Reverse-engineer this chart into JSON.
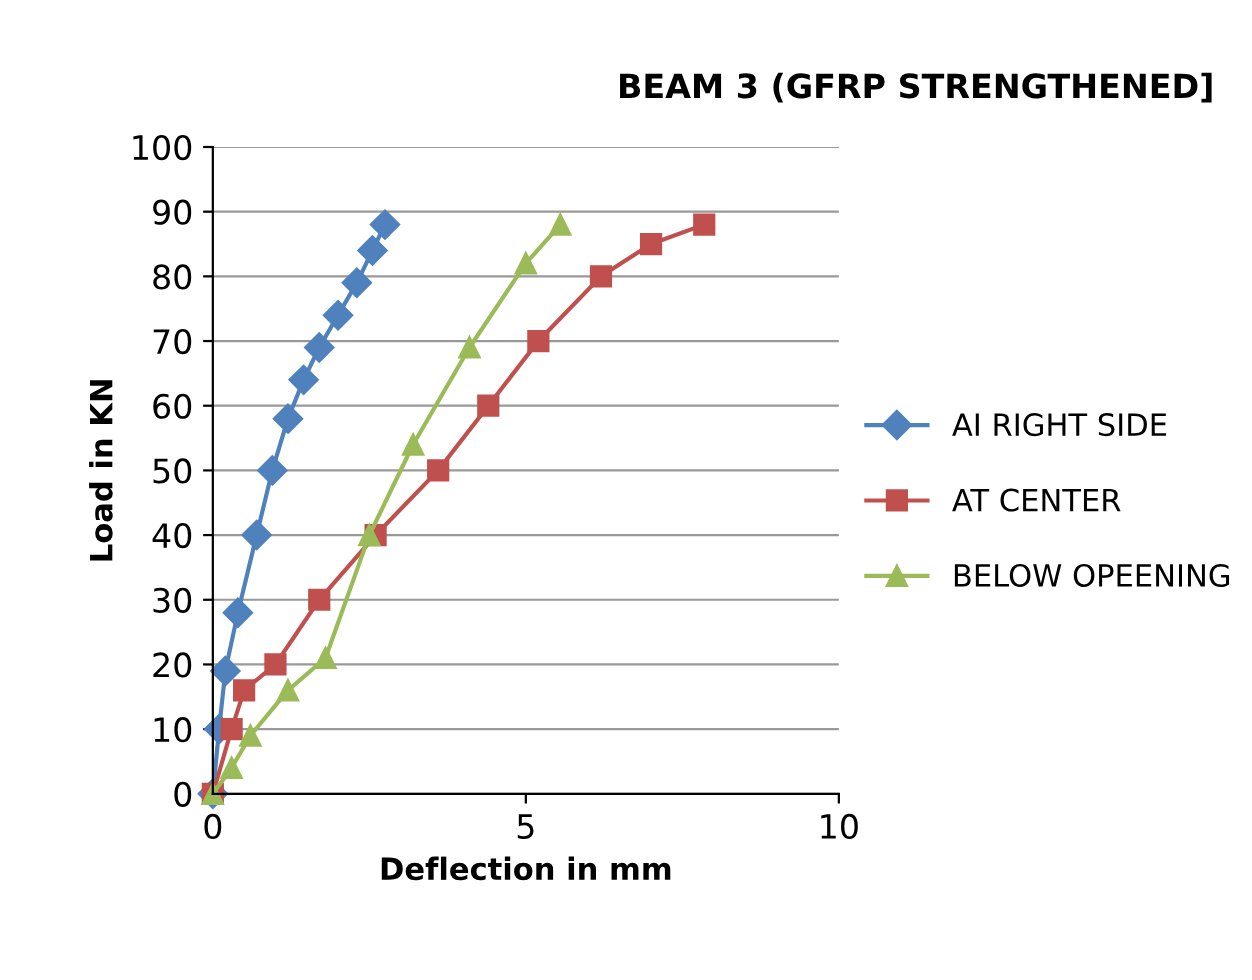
{
  "chart_data": {
    "type": "line",
    "title": "BEAM 3 (GFRP STRENGTHENED]",
    "xlabel": "Deflection in mm",
    "ylabel": "Load in KN",
    "xlim": [
      0,
      10
    ],
    "xticks": [
      0,
      5,
      10
    ],
    "ylim": [
      0,
      100
    ],
    "yticks": [
      0,
      10,
      20,
      30,
      40,
      50,
      60,
      70,
      80,
      90,
      100
    ],
    "grid": "y",
    "legend": "right",
    "line_style": "solid",
    "series": [
      {
        "name": "AI RIGHT SIDE",
        "color": "#4f81bd",
        "marker": "diamond",
        "x": [
          0,
          0.1,
          0.2,
          0.4,
          0.7,
          0.95,
          1.2,
          1.45,
          1.7,
          2.0,
          2.3,
          2.55,
          2.75
        ],
        "values": [
          0,
          10,
          19,
          28,
          40,
          50,
          58,
          64,
          69,
          74,
          79,
          84,
          88
        ]
      },
      {
        "name": "AT CENTER",
        "color": "#c0504d",
        "marker": "square",
        "x": [
          0,
          0.3,
          0.5,
          1.0,
          1.7,
          2.6,
          3.6,
          4.4,
          5.2,
          6.2,
          7.0,
          7.85
        ],
        "values": [
          0,
          10,
          16,
          20,
          30,
          40,
          50,
          60,
          70,
          80,
          85,
          88
        ]
      },
      {
        "name": "BELOW OPEENING",
        "color": "#9bbb59",
        "marker": "triangle",
        "x": [
          0,
          0.3,
          0.6,
          1.2,
          1.8,
          2.5,
          3.2,
          4.1,
          5.0,
          5.55
        ],
        "values": [
          0,
          4,
          9,
          16,
          21,
          40,
          54,
          69,
          82,
          88
        ]
      }
    ]
  }
}
